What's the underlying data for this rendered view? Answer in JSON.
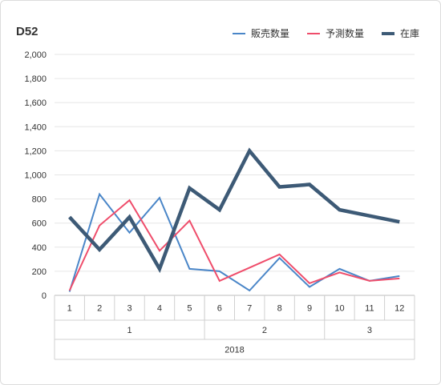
{
  "chart_data": {
    "type": "line",
    "title": "D52",
    "x_tick_labels": [
      "1",
      "2",
      "3",
      "4",
      "5",
      "6",
      "7",
      "8",
      "9",
      "10",
      "11",
      "12"
    ],
    "x_group_labels": [
      {
        "label": "1",
        "start": 0,
        "end": 5
      },
      {
        "label": "2",
        "start": 5,
        "end": 9
      },
      {
        "label": "3",
        "start": 9,
        "end": 12
      }
    ],
    "x_year_label": "2018",
    "ylim": [
      0,
      2000
    ],
    "y_ticks": [
      0,
      200,
      400,
      600,
      800,
      1000,
      1200,
      1400,
      1600,
      1800,
      2000
    ],
    "y_tick_labels": [
      "0",
      "200",
      "400",
      "600",
      "800",
      "1,000",
      "1,200",
      "1,400",
      "1,600",
      "1,800",
      "2,000"
    ],
    "grid": true,
    "legend_position": "top-right",
    "series": [
      {
        "name": "販売数量",
        "color": "#4a86c8",
        "width": 2,
        "values": [
          30,
          840,
          520,
          810,
          220,
          200,
          40,
          310,
          70,
          220,
          120,
          160
        ]
      },
      {
        "name": "予測数量",
        "color": "#ef4d6b",
        "width": 2,
        "values": [
          40,
          580,
          790,
          370,
          620,
          120,
          230,
          340,
          100,
          190,
          120,
          140
        ]
      },
      {
        "name": "在庫",
        "color": "#3d5a76",
        "width": 4.5,
        "values": [
          650,
          380,
          650,
          220,
          890,
          710,
          1200,
          900,
          920,
          710,
          660,
          610
        ]
      }
    ]
  }
}
